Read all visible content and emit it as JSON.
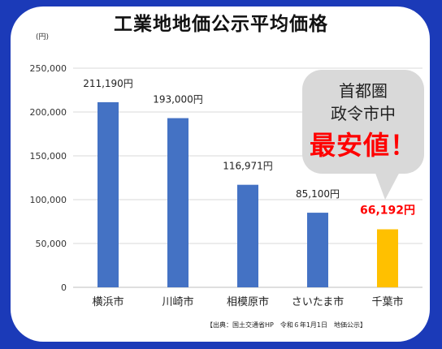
{
  "title": "工業地地価公示平均価格",
  "y_unit": "(円)",
  "source": "【出典：国土交通省HP　令和６年1月1日　地価公示】",
  "callout": {
    "line1": "首都圏",
    "line2": "政令市中",
    "line3": "最安値！"
  },
  "colors": {
    "background": "#1b3ab8",
    "bar": "#4472c4",
    "highlight_bar": "#ffc000",
    "highlight_label": "#ff0000"
  },
  "chart_data": {
    "type": "bar",
    "title": "工業地地価公示平均価格",
    "ylabel": "(円)",
    "xlabel": "",
    "ylim": [
      0,
      250000
    ],
    "yticks": [
      0,
      50000,
      100000,
      150000,
      200000,
      250000
    ],
    "ytick_labels": [
      "0",
      "50,000",
      "100,000",
      "150,000",
      "200,000",
      "250,000"
    ],
    "grid": true,
    "categories": [
      "横浜市",
      "川崎市",
      "相模原市",
      "さいたま市",
      "千葉市"
    ],
    "values": [
      211190,
      193000,
      116971,
      85100,
      66192
    ],
    "data_labels": [
      "211,190円",
      "193,000円",
      "116,971円",
      "85,100円",
      "66,192円"
    ],
    "highlight_index": 4
  }
}
